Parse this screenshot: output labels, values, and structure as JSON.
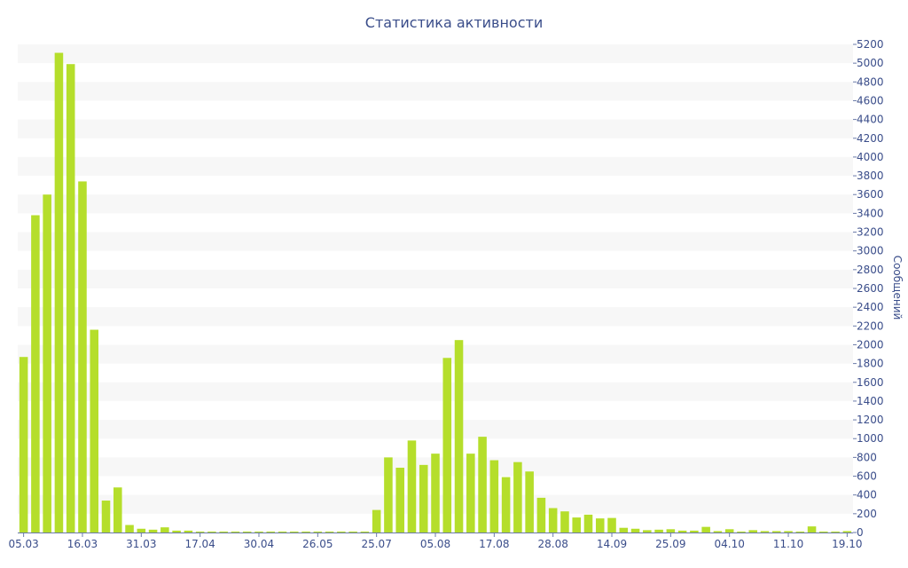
{
  "chart_data": {
    "type": "bar",
    "title": "Статистика активности",
    "xlabel": "",
    "ylabel": "Сообщений",
    "ylim": [
      0,
      5200
    ],
    "ystep": 200,
    "grid": true,
    "x_tick_labels": [
      "05.03",
      "16.03",
      "31.03",
      "17.04",
      "30.04",
      "26.05",
      "25.07",
      "05.08",
      "17.08",
      "28.08",
      "14.09",
      "25.09",
      "04.10",
      "11.10",
      "19.10"
    ],
    "x_tick_bar_index": [
      0,
      5,
      10,
      15,
      20,
      25,
      30,
      35,
      40,
      45,
      50,
      55,
      60,
      65,
      70
    ],
    "values": [
      1870,
      3380,
      3600,
      5110,
      4990,
      3740,
      2160,
      340,
      480,
      80,
      40,
      30,
      55,
      20,
      20,
      10,
      10,
      10,
      10,
      10,
      10,
      10,
      10,
      10,
      10,
      10,
      10,
      10,
      10,
      10,
      240,
      800,
      690,
      980,
      720,
      840,
      1860,
      2050,
      840,
      1020,
      770,
      590,
      750,
      650,
      370,
      260,
      225,
      160,
      190,
      150,
      155,
      50,
      40,
      25,
      30,
      35,
      20,
      20,
      60,
      15,
      35,
      10,
      25,
      15,
      15,
      15,
      10,
      65,
      10,
      10,
      15
    ]
  }
}
